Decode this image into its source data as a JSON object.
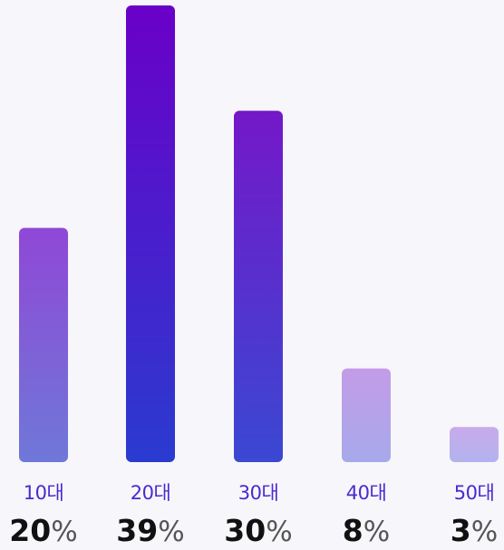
{
  "chart_data": {
    "type": "bar",
    "categories": [
      "10대",
      "20대",
      "30대",
      "40대",
      "50대"
    ],
    "values": [
      20,
      39,
      30,
      8,
      3
    ],
    "unit": "%",
    "title": "",
    "xlabel": "",
    "ylabel": "",
    "ylim": [
      0,
      39
    ],
    "grid": false,
    "colors": {
      "category_label": "#4b2ad0",
      "value_number": "#111111",
      "value_unit": "#555555",
      "background": "#f7f6fa"
    },
    "gradients": [
      [
        "#8f48d6",
        "#6f78d8"
      ],
      [
        "#6a00c8",
        "#2a3bd0"
      ],
      [
        "#7418c8",
        "#3a48d2"
      ],
      [
        "#c39ce8",
        "#a7a9ea"
      ],
      [
        "#c9aaeb",
        "#b2b3ee"
      ]
    ]
  }
}
